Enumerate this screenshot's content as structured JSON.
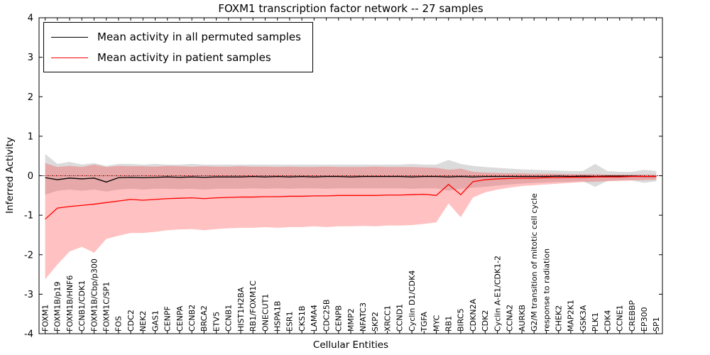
{
  "legend": {
    "items": [
      {
        "label": "Mean activity in all permuted samples",
        "color": "#000000"
      },
      {
        "label": "Mean activity in patient samples",
        "color": "#ff0000"
      }
    ]
  },
  "chart_data": {
    "type": "line",
    "title": "FOXM1 transcription factor network -- 27 samples",
    "xlabel": "Cellular Entities",
    "ylabel": "Inferred Activity",
    "ylim": [
      -4,
      4
    ],
    "yticks": [
      -4,
      -3,
      -2,
      -1,
      0,
      1,
      2,
      3,
      4
    ],
    "zero_line": true,
    "categories": [
      "FOXM1",
      "FOXM1B/p19",
      "FOXM1B/HNF6",
      "CCNB1/CDK1",
      "FOXM1B/Cbp/p300",
      "FOXM1C/SP1",
      "FOS",
      "CDC2",
      "NEK2",
      "GAS1",
      "CENPF",
      "CENPA",
      "CCNB2",
      "BRCA2",
      "ETV5",
      "CCNB1",
      "HIST1H2BA",
      "RB1/FOXM1C",
      "ONECUT1",
      "HSPA1B",
      "ESR1",
      "CKS1B",
      "LAMA4",
      "CDC25B",
      "CENPB",
      "MMP2",
      "NFATC3",
      "SKP2",
      "XRCC1",
      "CCND1",
      "Cyclin D1/CDK4",
      "TGFA",
      "MYC",
      "RB1",
      "BIRC5",
      "CDKN2A",
      "CDK2",
      "Cyclin A-E1/CDK1-2",
      "CCNA2",
      "AURKB",
      "G2/M transition of mitotic cell cycle",
      "response to radiation",
      "CHEK2",
      "MAP2K1",
      "GSK3A",
      "PLK1",
      "CDK4",
      "CCNE1",
      "CREBBP",
      "EP300",
      "SP1"
    ],
    "series": [
      {
        "name": "Mean activity in all permuted samples",
        "color": "#000000",
        "band_color": "#999999",
        "band_opacity": 0.35,
        "values": [
          -0.05,
          -0.1,
          -0.06,
          -0.08,
          -0.06,
          -0.16,
          -0.05,
          -0.04,
          -0.05,
          -0.04,
          -0.03,
          -0.04,
          -0.03,
          -0.04,
          -0.03,
          -0.03,
          -0.03,
          -0.02,
          -0.03,
          -0.02,
          -0.03,
          -0.02,
          -0.03,
          -0.02,
          -0.02,
          -0.03,
          -0.02,
          -0.02,
          -0.02,
          -0.02,
          -0.03,
          -0.02,
          -0.02,
          -0.03,
          -0.02,
          -0.03,
          -0.02,
          -0.02,
          -0.02,
          -0.02,
          -0.02,
          -0.02,
          -0.01,
          -0.02,
          -0.01,
          -0.02,
          -0.01,
          -0.01,
          -0.01,
          -0.02,
          -0.02
        ],
        "upper": [
          0.55,
          0.3,
          0.35,
          0.28,
          0.32,
          0.25,
          0.3,
          0.3,
          0.28,
          0.3,
          0.28,
          0.28,
          0.3,
          0.28,
          0.28,
          0.28,
          0.28,
          0.28,
          0.28,
          0.28,
          0.28,
          0.28,
          0.28,
          0.28,
          0.28,
          0.28,
          0.28,
          0.28,
          0.28,
          0.28,
          0.3,
          0.28,
          0.28,
          0.4,
          0.3,
          0.25,
          0.22,
          0.2,
          0.18,
          0.16,
          0.15,
          0.14,
          0.13,
          0.12,
          0.12,
          0.3,
          0.12,
          0.1,
          0.1,
          0.15,
          0.12
        ],
        "lower": [
          -0.48,
          -0.38,
          -0.35,
          -0.38,
          -0.35,
          -0.4,
          -0.35,
          -0.33,
          -0.35,
          -0.33,
          -0.33,
          -0.34,
          -0.33,
          -0.35,
          -0.33,
          -0.33,
          -0.33,
          -0.32,
          -0.33,
          -0.32,
          -0.33,
          -0.32,
          -0.32,
          -0.33,
          -0.32,
          -0.32,
          -0.32,
          -0.32,
          -0.32,
          -0.32,
          -0.33,
          -0.32,
          -0.32,
          -0.38,
          -0.33,
          -0.3,
          -0.28,
          -0.25,
          -0.22,
          -0.2,
          -0.18,
          -0.17,
          -0.16,
          -0.15,
          -0.14,
          -0.28,
          -0.13,
          -0.12,
          -0.12,
          -0.18,
          -0.14
        ]
      },
      {
        "name": "Mean activity in patient samples",
        "color": "#ff0000",
        "band_color": "#ff3333",
        "band_opacity": 0.3,
        "values": [
          -1.1,
          -0.82,
          -0.78,
          -0.75,
          -0.72,
          -0.68,
          -0.64,
          -0.6,
          -0.62,
          -0.6,
          -0.58,
          -0.57,
          -0.56,
          -0.58,
          -0.56,
          -0.55,
          -0.54,
          -0.54,
          -0.53,
          -0.53,
          -0.52,
          -0.52,
          -0.51,
          -0.51,
          -0.5,
          -0.5,
          -0.5,
          -0.5,
          -0.49,
          -0.49,
          -0.48,
          -0.47,
          -0.5,
          -0.22,
          -0.48,
          -0.15,
          -0.1,
          -0.08,
          -0.07,
          -0.06,
          -0.06,
          -0.05,
          -0.05,
          -0.04,
          -0.04,
          -0.03,
          -0.03,
          -0.03,
          -0.02,
          -0.02,
          -0.02
        ],
        "upper": [
          0.32,
          0.22,
          0.25,
          0.22,
          0.28,
          0.22,
          0.25,
          0.24,
          0.24,
          0.23,
          0.25,
          0.24,
          0.23,
          0.24,
          0.23,
          0.23,
          0.24,
          0.23,
          0.23,
          0.22,
          0.23,
          0.22,
          0.22,
          0.23,
          0.22,
          0.22,
          0.22,
          0.23,
          0.22,
          0.22,
          0.22,
          0.21,
          0.2,
          0.15,
          0.18,
          0.1,
          0.08,
          0.07,
          0.06,
          0.06,
          0.05,
          0.05,
          0.05,
          0.04,
          0.04,
          0.04,
          0.03,
          0.03,
          0.03,
          0.03,
          0.03
        ],
        "lower": [
          -2.62,
          -2.25,
          -1.92,
          -1.8,
          -1.95,
          -1.6,
          -1.52,
          -1.45,
          -1.45,
          -1.42,
          -1.38,
          -1.36,
          -1.35,
          -1.38,
          -1.35,
          -1.33,
          -1.32,
          -1.32,
          -1.3,
          -1.32,
          -1.3,
          -1.3,
          -1.28,
          -1.3,
          -1.28,
          -1.28,
          -1.27,
          -1.28,
          -1.26,
          -1.26,
          -1.25,
          -1.22,
          -1.18,
          -0.7,
          -1.05,
          -0.55,
          -0.42,
          -0.35,
          -0.3,
          -0.26,
          -0.24,
          -0.22,
          -0.2,
          -0.18,
          -0.16,
          -0.15,
          -0.14,
          -0.13,
          -0.12,
          -0.11,
          -0.1
        ]
      }
    ]
  }
}
